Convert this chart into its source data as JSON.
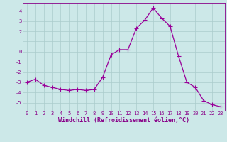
{
  "hours": [
    0,
    1,
    2,
    3,
    4,
    5,
    6,
    7,
    8,
    9,
    10,
    11,
    12,
    13,
    14,
    15,
    16,
    17,
    18,
    19,
    20,
    21,
    22,
    23
  ],
  "values": [
    -3.0,
    -2.7,
    -3.3,
    -3.5,
    -3.7,
    -3.8,
    -3.7,
    -3.8,
    -3.7,
    -2.5,
    -0.3,
    0.2,
    0.2,
    2.3,
    3.1,
    4.3,
    3.3,
    2.5,
    -0.4,
    -3.0,
    -3.5,
    -4.8,
    -5.2,
    -5.4
  ],
  "line_color": "#990099",
  "marker": "+",
  "marker_size": 4,
  "bg_color": "#cce8e8",
  "grid_color": "#aacccc",
  "xlabel": "Windchill (Refroidissement éolien,°C)",
  "xlim": [
    -0.5,
    23.5
  ],
  "ylim": [
    -5.8,
    4.8
  ],
  "yticks": [
    -5,
    -4,
    -3,
    -2,
    -1,
    0,
    1,
    2,
    3,
    4
  ],
  "xticks": [
    0,
    1,
    2,
    3,
    4,
    5,
    6,
    7,
    8,
    9,
    10,
    11,
    12,
    13,
    14,
    15,
    16,
    17,
    18,
    19,
    20,
    21,
    22,
    23
  ],
  "tick_color": "#880088",
  "label_color": "#880088",
  "tick_fontsize": 5.0,
  "xlabel_fontsize": 6.0,
  "linewidth": 0.9
}
